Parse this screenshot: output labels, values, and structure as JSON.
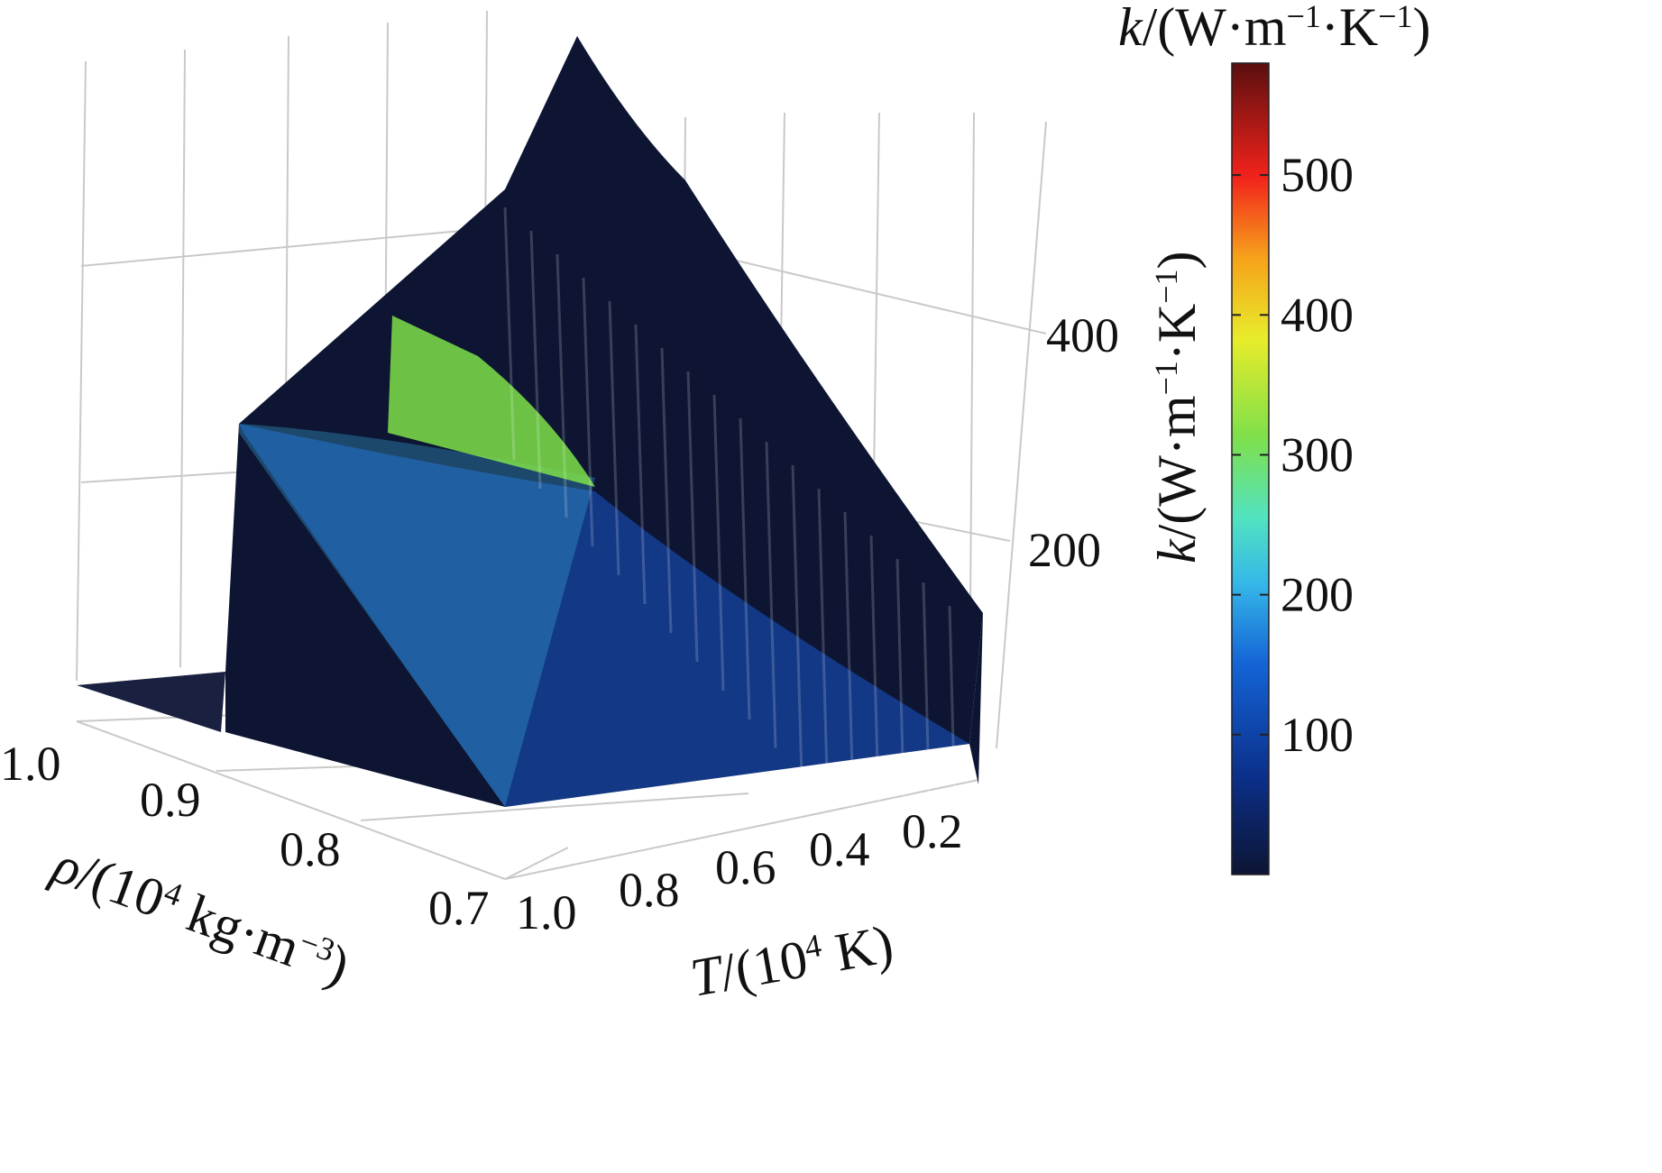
{
  "chart_data": {
    "type": "surface3d",
    "colormap": "jet",
    "colorbar": {
      "title_sym": "k",
      "title_rest": "/(W·m",
      "title_exp1": "−1",
      "title_mid": "·K",
      "title_exp2": "−1",
      "title_end": ")",
      "min": 0,
      "max": 580,
      "ticks": [
        "100",
        "200",
        "300",
        "400",
        "500"
      ]
    },
    "axes": {
      "rho": {
        "label_sym": "ρ",
        "label_rest": "/(10",
        "label_exp": "4",
        "label_unit": " kg·m",
        "label_unit_exp": "−3",
        "label_end": ")",
        "ticks": [
          "1.0",
          "0.9",
          "0.8",
          "0.7"
        ],
        "range": [
          0.7,
          1.0
        ]
      },
      "T": {
        "label_sym": "T",
        "label_rest": "/(10",
        "label_exp": "4",
        "label_end": " K)",
        "ticks": [
          "1.0",
          "0.8",
          "0.6",
          "0.4",
          "0.2"
        ],
        "range": [
          0.1,
          1.0
        ]
      },
      "k": {
        "label_sym": "k",
        "label_rest": "/(W·m",
        "label_exp1": "−1",
        "label_mid": "·K",
        "label_exp2": "−1",
        "label_end": ")",
        "ticks": [
          "200",
          "400"
        ],
        "range": [
          0,
          580
        ]
      }
    },
    "grid": true,
    "legend": "none",
    "surface_note_points": [
      {
        "T": 0.1,
        "rho": 1.0,
        "k": 580
      },
      {
        "T": 1.0,
        "rho": 1.0,
        "k": 0
      },
      {
        "T": 0.1,
        "rho": 0.7,
        "k": 0
      }
    ]
  }
}
